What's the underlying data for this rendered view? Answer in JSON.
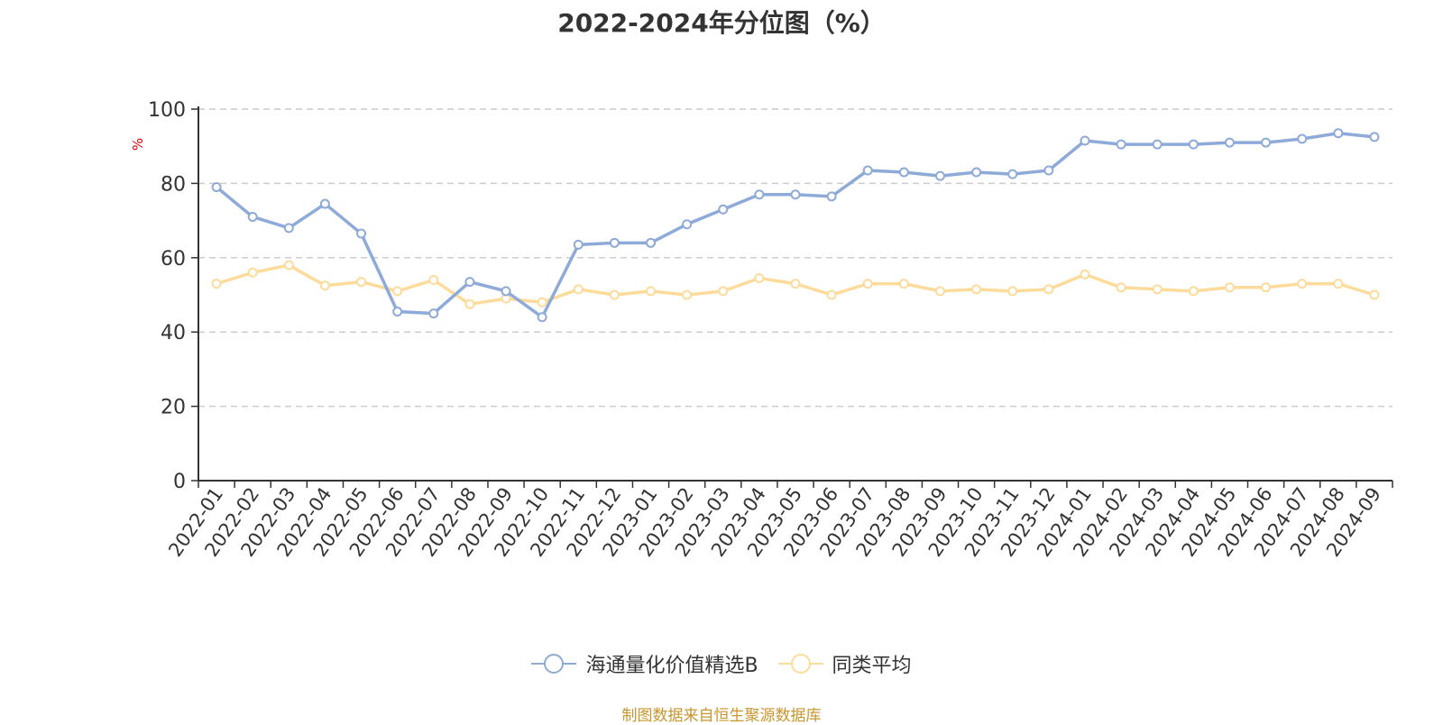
{
  "chart_data": {
    "type": "line",
    "title": "2022-2024年分位图（%）",
    "ylabel": "%",
    "xlabel": "",
    "ylim": [
      0,
      100
    ],
    "yticks": [
      0,
      20,
      40,
      60,
      80,
      100
    ],
    "grid": true,
    "legend_position": "bottom-center",
    "categories": [
      "2022-01",
      "2022-02",
      "2022-03",
      "2022-04",
      "2022-05",
      "2022-06",
      "2022-07",
      "2022-08",
      "2022-09",
      "2022-10",
      "2022-11",
      "2022-12",
      "2023-01",
      "2023-02",
      "2023-03",
      "2023-04",
      "2023-05",
      "2023-06",
      "2023-07",
      "2023-08",
      "2023-09",
      "2023-10",
      "2023-11",
      "2023-12",
      "2024-01",
      "2024-02",
      "2024-03",
      "2024-04",
      "2024-05",
      "2024-06",
      "2024-07",
      "2024-08",
      "2024-09"
    ],
    "series": [
      {
        "name": "海通量化价值精选B",
        "color": "#8eaad9",
        "values": [
          79,
          71,
          68,
          74.5,
          66.5,
          45.5,
          45,
          53.5,
          51,
          44,
          63.5,
          64,
          64,
          69,
          73,
          77,
          77,
          76.5,
          83.5,
          83,
          82,
          83,
          82.5,
          83.5,
          91.5,
          90.5,
          90.5,
          90.5,
          91,
          91,
          92,
          93.5,
          92.5
        ]
      },
      {
        "name": "同类平均",
        "color": "#fddb9a",
        "values": [
          53,
          56,
          58,
          52.5,
          53.5,
          51,
          54,
          47.5,
          49,
          48,
          51.5,
          50,
          51,
          50,
          51,
          54.5,
          53,
          50,
          53,
          53,
          51,
          51.5,
          51,
          51.5,
          55.5,
          52,
          51.5,
          51,
          52,
          52,
          53,
          53,
          50
        ]
      }
    ]
  },
  "source_text": "制图数据来自恒生聚源数据库"
}
